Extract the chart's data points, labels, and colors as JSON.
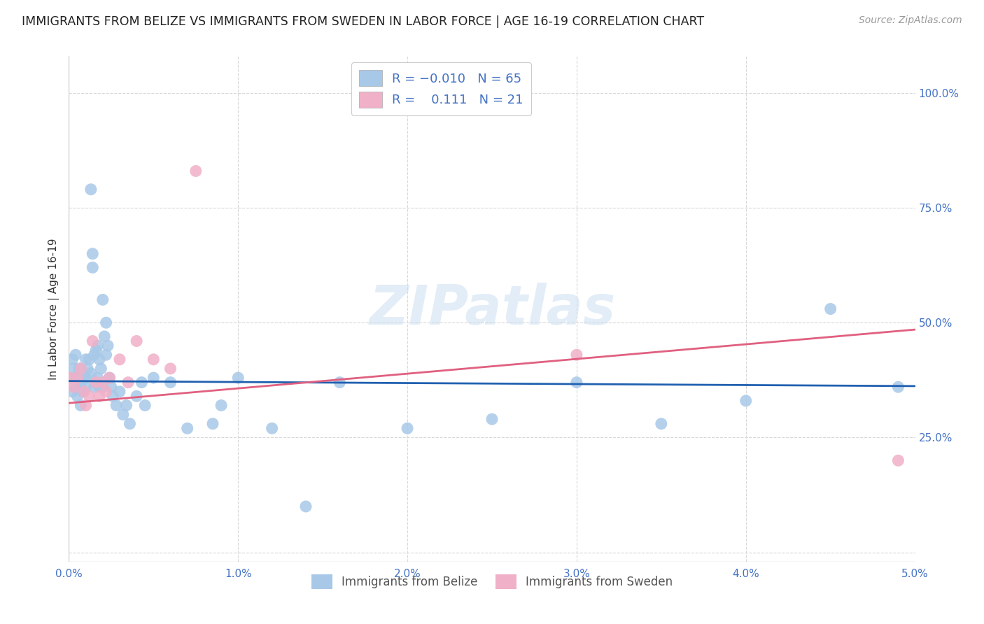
{
  "title": "IMMIGRANTS FROM BELIZE VS IMMIGRANTS FROM SWEDEN IN LABOR FORCE | AGE 16-19 CORRELATION CHART",
  "source": "Source: ZipAtlas.com",
  "ylabel": "In Labor Force | Age 16-19",
  "xlim": [
    0.0,
    0.05
  ],
  "ylim": [
    -0.02,
    1.08
  ],
  "yticks": [
    0.0,
    0.25,
    0.5,
    0.75,
    1.0
  ],
  "xticks": [
    0.0,
    0.01,
    0.02,
    0.03,
    0.04,
    0.05
  ],
  "belize_color": "#a8c8e8",
  "sweden_color": "#f0b0c8",
  "belize_line_color": "#2060b0",
  "sweden_line_color": "#e06080",
  "belize_R": -0.01,
  "belize_N": 65,
  "sweden_R": 0.111,
  "sweden_N": 21,
  "watermark": "ZIPatlas",
  "background_color": "#ffffff",
  "grid_color": "#d8d8d8",
  "belize_intercept": 0.373,
  "belize_slope": -0.22,
  "sweden_intercept": 0.325,
  "sweden_slope": 3.2,
  "belize_x": [
    0.0001,
    0.0002,
    0.0002,
    0.0003,
    0.0003,
    0.0004,
    0.0004,
    0.0005,
    0.0005,
    0.0006,
    0.0007,
    0.0007,
    0.0008,
    0.0009,
    0.001,
    0.001,
    0.001,
    0.0011,
    0.0012,
    0.0013,
    0.0013,
    0.0014,
    0.0014,
    0.0015,
    0.0015,
    0.0016,
    0.0016,
    0.0017,
    0.0017,
    0.0018,
    0.0018,
    0.0019,
    0.002,
    0.002,
    0.0021,
    0.0022,
    0.0022,
    0.0023,
    0.0024,
    0.0025,
    0.0026,
    0.0028,
    0.003,
    0.0032,
    0.0034,
    0.0036,
    0.004,
    0.0043,
    0.0045,
    0.005,
    0.006,
    0.007,
    0.0085,
    0.009,
    0.01,
    0.012,
    0.014,
    0.016,
    0.02,
    0.025,
    0.03,
    0.035,
    0.04,
    0.045,
    0.049
  ],
  "belize_y": [
    0.38,
    0.35,
    0.42,
    0.38,
    0.4,
    0.36,
    0.43,
    0.38,
    0.34,
    0.4,
    0.37,
    0.32,
    0.35,
    0.38,
    0.36,
    0.38,
    0.42,
    0.4,
    0.42,
    0.79,
    0.39,
    0.65,
    0.62,
    0.43,
    0.36,
    0.44,
    0.37,
    0.45,
    0.38,
    0.42,
    0.36,
    0.4,
    0.55,
    0.36,
    0.47,
    0.5,
    0.43,
    0.45,
    0.38,
    0.36,
    0.34,
    0.32,
    0.35,
    0.3,
    0.32,
    0.28,
    0.34,
    0.37,
    0.32,
    0.38,
    0.37,
    0.27,
    0.28,
    0.32,
    0.38,
    0.27,
    0.1,
    0.37,
    0.27,
    0.29,
    0.37,
    0.28,
    0.33,
    0.53,
    0.36
  ],
  "sweden_x": [
    0.0001,
    0.0003,
    0.0005,
    0.0007,
    0.0009,
    0.001,
    0.0012,
    0.0014,
    0.0016,
    0.0018,
    0.002,
    0.0022,
    0.0024,
    0.003,
    0.0035,
    0.004,
    0.005,
    0.006,
    0.0075,
    0.03,
    0.049
  ],
  "sweden_y": [
    0.38,
    0.36,
    0.38,
    0.4,
    0.35,
    0.32,
    0.34,
    0.46,
    0.37,
    0.34,
    0.37,
    0.35,
    0.38,
    0.42,
    0.37,
    0.46,
    0.42,
    0.4,
    0.83,
    0.43,
    0.2
  ]
}
